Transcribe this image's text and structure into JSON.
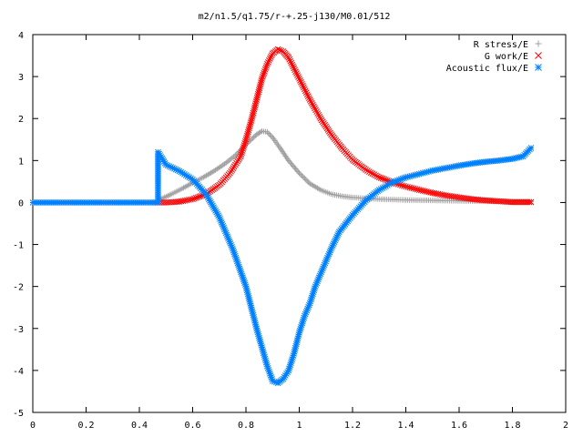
{
  "chart_data": {
    "type": "scatter",
    "title": "m2/n1.5/q1.75/r-+.25-j130/M0.01/512",
    "xlabel": "",
    "ylabel": "",
    "xlim": [
      0,
      2
    ],
    "ylim": [
      -5,
      4
    ],
    "x_ticks": [
      "0",
      "0.2",
      "0.4",
      "0.6",
      "0.8",
      "1",
      "1.2",
      "1.4",
      "1.6",
      "1.8",
      "2"
    ],
    "y_ticks": [
      "4",
      "3",
      "2",
      "1",
      "0",
      "-1",
      "-2",
      "-3",
      "-4",
      "-5"
    ],
    "grid": false,
    "legend_position": "top-right",
    "series": [
      {
        "name": "R stress/E",
        "marker": "+",
        "color": "#a0a0a0",
        "x": [
          0.47,
          0.52,
          0.56,
          0.6,
          0.64,
          0.68,
          0.72,
          0.76,
          0.8,
          0.84,
          0.86,
          0.88,
          0.9,
          0.93,
          0.96,
          1.0,
          1.04,
          1.08,
          1.12,
          1.16,
          1.2,
          1.25,
          1.3,
          1.35,
          1.4,
          1.5,
          1.6,
          1.7,
          1.8,
          1.87
        ],
        "y": [
          0.05,
          0.2,
          0.33,
          0.47,
          0.6,
          0.75,
          0.92,
          1.12,
          1.38,
          1.62,
          1.7,
          1.68,
          1.55,
          1.28,
          1.0,
          0.7,
          0.45,
          0.3,
          0.2,
          0.15,
          0.12,
          0.1,
          0.08,
          0.07,
          0.06,
          0.05,
          0.04,
          0.03,
          0.02,
          0.02
        ]
      },
      {
        "name": "G work/E",
        "marker": "x",
        "color": "#ff0000",
        "x": [
          0.47,
          0.5,
          0.55,
          0.6,
          0.65,
          0.7,
          0.74,
          0.78,
          0.8,
          0.82,
          0.84,
          0.86,
          0.88,
          0.9,
          0.92,
          0.94,
          0.96,
          0.98,
          1.0,
          1.04,
          1.08,
          1.12,
          1.16,
          1.2,
          1.25,
          1.3,
          1.35,
          1.4,
          1.45,
          1.5,
          1.55,
          1.6,
          1.65,
          1.7,
          1.75,
          1.8,
          1.87
        ],
        "y": [
          0.0,
          0.0,
          0.02,
          0.08,
          0.2,
          0.42,
          0.7,
          1.1,
          1.5,
          1.95,
          2.45,
          2.95,
          3.3,
          3.55,
          3.65,
          3.6,
          3.45,
          3.2,
          2.95,
          2.45,
          2.0,
          1.62,
          1.3,
          1.02,
          0.78,
          0.6,
          0.48,
          0.38,
          0.3,
          0.23,
          0.17,
          0.12,
          0.08,
          0.05,
          0.03,
          0.01,
          0.01
        ]
      },
      {
        "name": "Acoustic flux/E",
        "marker": "*",
        "color": "#0080ff",
        "x": [
          0.0,
          0.05,
          0.1,
          0.15,
          0.2,
          0.25,
          0.3,
          0.35,
          0.4,
          0.45,
          0.47,
          0.47,
          0.5,
          0.55,
          0.6,
          0.65,
          0.7,
          0.75,
          0.8,
          0.84,
          0.88,
          0.9,
          0.92,
          0.94,
          0.96,
          0.98,
          1.0,
          1.02,
          1.04,
          1.06,
          1.08,
          1.1,
          1.12,
          1.15,
          1.2,
          1.25,
          1.3,
          1.35,
          1.4,
          1.45,
          1.5,
          1.55,
          1.6,
          1.65,
          1.7,
          1.75,
          1.8,
          1.84,
          1.87
        ],
        "y": [
          0.0,
          0.0,
          0.0,
          0.0,
          0.0,
          0.0,
          0.0,
          0.0,
          0.0,
          0.0,
          0.0,
          1.2,
          0.9,
          0.75,
          0.55,
          0.2,
          -0.35,
          -1.1,
          -2.0,
          -3.0,
          -3.9,
          -4.25,
          -4.3,
          -4.2,
          -4.0,
          -3.6,
          -3.1,
          -2.7,
          -2.4,
          -2.0,
          -1.7,
          -1.4,
          -1.1,
          -0.7,
          -0.3,
          0.05,
          0.3,
          0.48,
          0.6,
          0.68,
          0.76,
          0.82,
          0.88,
          0.93,
          0.97,
          1.0,
          1.04,
          1.1,
          1.3
        ]
      }
    ]
  }
}
